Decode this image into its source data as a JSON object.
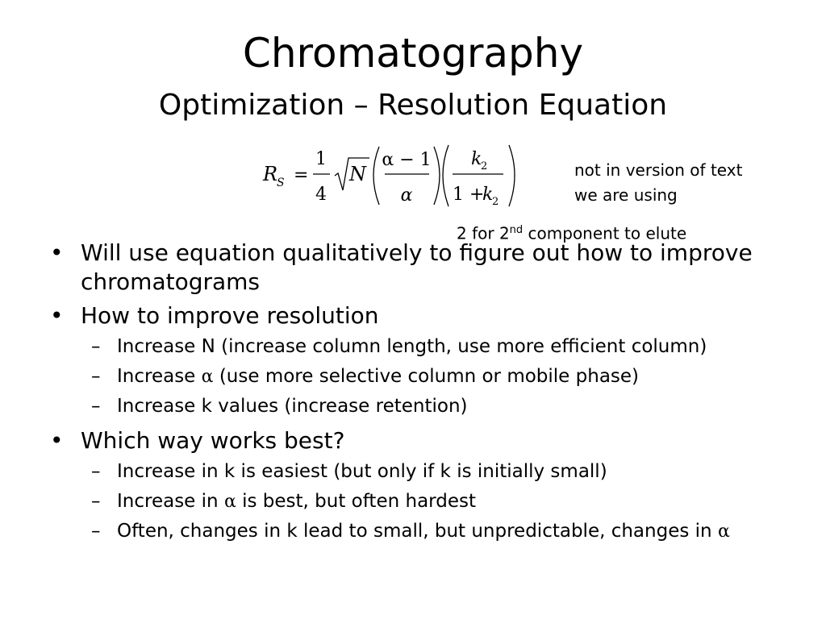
{
  "slide": {
    "title": "Chromatography",
    "subtitle": "Optimization – Resolution Equation"
  },
  "equation": {
    "lhs_symbol": "R",
    "lhs_subscript": "S",
    "equals": "=",
    "frac1_num": "1",
    "frac1_den": "4",
    "sqrt_arg": "N",
    "frac2_num": "α − 1",
    "frac2_den": "α",
    "frac3_num_var": "k",
    "frac3_num_sub": "2",
    "frac3_den_pre": "1 + ",
    "frac3_den_var": "k",
    "frac3_den_sub": "2"
  },
  "notes": {
    "version_line1": "not in version of text",
    "version_line2": "we are using",
    "elute_pre": "2 for 2",
    "elute_sup": "nd",
    "elute_post": " component to elute"
  },
  "bullets": {
    "b1": "Will use equation qualitatively to figure out how to improve chromatograms",
    "b2": "How to improve resolution",
    "b2_sub1": "Increase N (increase column length, use more efficient column)",
    "b2_sub2_pre": "Increase ",
    "b2_sub2_alpha": "α",
    "b2_sub2_post": " (use more selective column or mobile phase)",
    "b2_sub3": "Increase k values (increase retention)",
    "b3": "Which way works best?",
    "b3_sub1": "Increase in k is easiest (but only if k is initially small)",
    "b3_sub2_pre": "Increase in ",
    "b3_sub2_alpha": "α",
    "b3_sub2_post": " is best, but often hardest",
    "b3_sub3_pre": "Often, changes in k lead to small, but unpredictable, changes in ",
    "b3_sub3_alpha": "α"
  }
}
